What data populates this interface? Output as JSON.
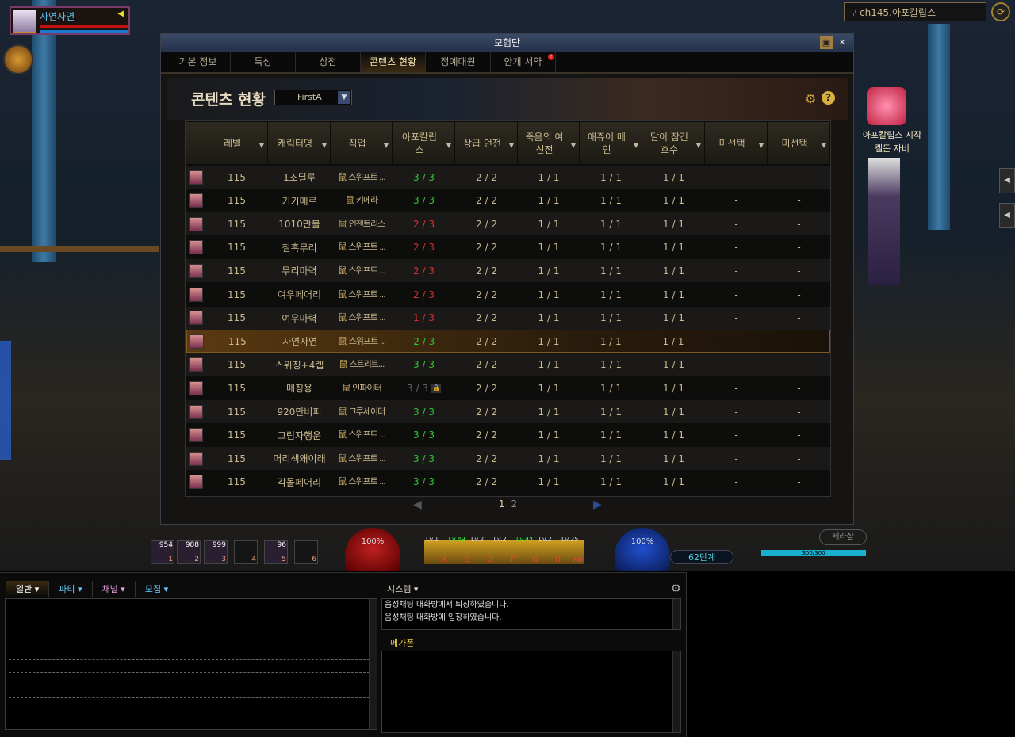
{
  "player": {
    "name": "자연자연"
  },
  "channel": {
    "label": "ch145.아포칼립스"
  },
  "npc": {
    "event_label": "아포칼립스 시작",
    "name": "켈돈 자비"
  },
  "window": {
    "title": "모험단",
    "tabs": [
      {
        "label": "기본 정보"
      },
      {
        "label": "특성"
      },
      {
        "label": "상점"
      },
      {
        "label": "콘텐츠 현황",
        "active": true
      },
      {
        "label": "정예대원"
      },
      {
        "label": "안개 서약",
        "alert": "!"
      }
    ],
    "content_title": "콘텐츠 현황",
    "filter_value": "FirstA",
    "columns": [
      "레벨",
      "캐릭터명",
      "직업",
      "아포칼립스",
      "상급 던전",
      "죽음의 여신전",
      "애쥬어 메인",
      "달이 잠긴 호수",
      "미선택",
      "미선택"
    ],
    "rows": [
      {
        "level": "115",
        "name": "1조딜루",
        "job": "스위프트 ...",
        "apoc": "3 / 3",
        "apoc_status": "complete",
        "cells": [
          "2 / 2",
          "1 / 1",
          "1 / 1",
          "1 / 1",
          "-",
          "-"
        ]
      },
      {
        "level": "115",
        "name": "키키메르",
        "job": "키메라",
        "apoc": "3 / 3",
        "apoc_status": "complete",
        "cells": [
          "2 / 2",
          "1 / 1",
          "1 / 1",
          "1 / 1",
          "-",
          "-"
        ]
      },
      {
        "level": "115",
        "name": "1010만볼",
        "job": "인챈트리스",
        "apoc": "2 / 3",
        "apoc_status": "partial",
        "cells": [
          "2 / 2",
          "1 / 1",
          "1 / 1",
          "1 / 1",
          "-",
          "-"
        ]
      },
      {
        "level": "115",
        "name": "칠흑무리",
        "job": "스위프트 ...",
        "apoc": "2 / 3",
        "apoc_status": "partial",
        "cells": [
          "2 / 2",
          "1 / 1",
          "1 / 1",
          "1 / 1",
          "-",
          "-"
        ]
      },
      {
        "level": "115",
        "name": "무리마력",
        "job": "스위프트 ...",
        "apoc": "2 / 3",
        "apoc_status": "partial",
        "cells": [
          "2 / 2",
          "1 / 1",
          "1 / 1",
          "1 / 1",
          "-",
          "-"
        ]
      },
      {
        "level": "115",
        "name": "여우페어리",
        "job": "스위프트 ...",
        "apoc": "2 / 3",
        "apoc_status": "partial",
        "cells": [
          "2 / 2",
          "1 / 1",
          "1 / 1",
          "1 / 1",
          "-",
          "-"
        ]
      },
      {
        "level": "115",
        "name": "여우마력",
        "job": "스위프트 ...",
        "apoc": "1 / 3",
        "apoc_status": "partial",
        "cells": [
          "2 / 2",
          "1 / 1",
          "1 / 1",
          "1 / 1",
          "-",
          "-"
        ]
      },
      {
        "level": "115",
        "name": "자연자연",
        "job": "스위프트 ...",
        "apoc": "2 / 3",
        "apoc_status": "current",
        "cells": [
          "2 / 2",
          "1 / 1",
          "1 / 1",
          "1 / 1",
          "-",
          "-"
        ]
      },
      {
        "level": "115",
        "name": "스위칭+4렙",
        "job": "스트리트...",
        "apoc": "3 / 3",
        "apoc_status": "complete",
        "cells": [
          "2 / 2",
          "1 / 1",
          "1 / 1",
          "1 / 1",
          "-",
          "-"
        ]
      },
      {
        "level": "115",
        "name": "매칭용",
        "job": "인파이터",
        "apoc": "3 / 3",
        "apoc_status": "locked",
        "cells": [
          "2 / 2",
          "1 / 1",
          "1 / 1",
          "1 / 1",
          "-",
          "-"
        ]
      },
      {
        "level": "115",
        "name": "920만버퍼",
        "job": "크루세이더",
        "apoc": "3 / 3",
        "apoc_status": "complete",
        "cells": [
          "2 / 2",
          "1 / 1",
          "1 / 1",
          "1 / 1",
          "-",
          "-"
        ]
      },
      {
        "level": "115",
        "name": "그림자행운",
        "job": "스위프트 ...",
        "apoc": "3 / 3",
        "apoc_status": "complete",
        "cells": [
          "2 / 2",
          "1 / 1",
          "1 / 1",
          "1 / 1",
          "-",
          "-"
        ]
      },
      {
        "level": "115",
        "name": "머리색왜이래",
        "job": "스위프트 ...",
        "apoc": "3 / 3",
        "apoc_status": "complete",
        "cells": [
          "2 / 2",
          "1 / 1",
          "1 / 1",
          "1 / 1",
          "-",
          "-"
        ]
      },
      {
        "level": "115",
        "name": "각몰페어리",
        "job": "스위프트 ...",
        "apoc": "3 / 3",
        "apoc_status": "complete",
        "cells": [
          "2 / 2",
          "1 / 1",
          "1 / 1",
          "1 / 1",
          "-",
          "-"
        ]
      }
    ],
    "selected_row": 7,
    "pages": [
      "1",
      "2"
    ],
    "current_page": "1"
  },
  "hud": {
    "quickslots": [
      {
        "count": "954",
        "key": "1"
      },
      {
        "count": "988",
        "key": "2"
      },
      {
        "count": "999",
        "key": "3"
      },
      {
        "count": "",
        "key": "4"
      },
      {
        "count": "96",
        "key": "5"
      },
      {
        "count": "",
        "key": "6"
      }
    ],
    "hp": "100%",
    "mp": "100%",
    "skills": [
      {
        "lv": "Lv.1",
        "key": "A"
      },
      {
        "lv": "Lv.49",
        "key": "S",
        "hi": true
      },
      {
        "lv": "Lv.2",
        "key": "D"
      },
      {
        "lv": "Lv.2",
        "key": "F"
      },
      {
        "lv": "Lv.44",
        "key": "G",
        "hi": true
      },
      {
        "lv": "Lv.2",
        "key": "H"
      },
      {
        "lv": "Lv.25",
        "key": "Alt"
      }
    ],
    "stage": "62단계",
    "fatigue": "300/300",
    "shop": "세라샵"
  },
  "chat": {
    "tabs": [
      "일반",
      "파티",
      "채널",
      "모집"
    ],
    "system_tab": "시스템",
    "system_messages": [
      "음성채팅 대화방에서 퇴장하였습니다.",
      "음성채팅 대화방에 입장하였습니다."
    ],
    "megaphone_tab": "메가폰"
  },
  "colors": {
    "complete": "#2ec830",
    "partial": "#d83030",
    "locked": "#666666",
    "accent": "#c9b98f"
  }
}
